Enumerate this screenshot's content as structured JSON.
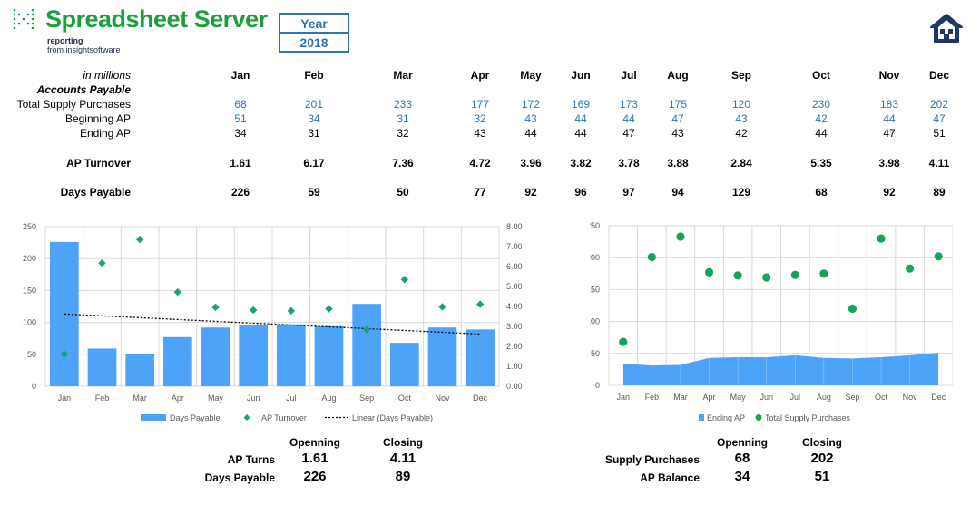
{
  "brand": {
    "name": "Spreadsheet Server",
    "tagline_line1": "reporting",
    "tagline_line2": "from insightsoftware",
    "accent_color": "#1e9f3e"
  },
  "year_selector": {
    "label": "Year",
    "value": "2018"
  },
  "home_icon": "home-icon",
  "table": {
    "units_label": "in millions",
    "section_label": "Accounts Payable",
    "months": [
      "Jan",
      "Feb",
      "Mar",
      "Apr",
      "May",
      "Jun",
      "Jul",
      "Aug",
      "Sep",
      "Oct",
      "Nov",
      "Dec"
    ],
    "rows": {
      "total_supply_purchases": {
        "label": "Total Supply Purchases",
        "values": [
          "68",
          "201",
          "233",
          "177",
          "172",
          "169",
          "173",
          "175",
          "120",
          "230",
          "183",
          "202"
        ]
      },
      "beginning_ap": {
        "label": "Beginning AP",
        "values": [
          "51",
          "34",
          "31",
          "32",
          "43",
          "44",
          "44",
          "47",
          "43",
          "42",
          "44",
          "47"
        ]
      },
      "ending_ap": {
        "label": "Ending AP",
        "values": [
          "34",
          "31",
          "32",
          "43",
          "44",
          "44",
          "47",
          "43",
          "42",
          "44",
          "47",
          "51"
        ]
      },
      "ap_turnover": {
        "label": "AP Turnover",
        "values": [
          "1.61",
          "6.17",
          "7.36",
          "4.72",
          "3.96",
          "3.82",
          "3.78",
          "3.88",
          "2.84",
          "5.35",
          "3.98",
          "4.11"
        ]
      },
      "days_payable": {
        "label": "Days Payable",
        "values": [
          "226",
          "59",
          "50",
          "77",
          "92",
          "96",
          "97",
          "94",
          "129",
          "68",
          "92",
          "89"
        ]
      }
    }
  },
  "chart_data": [
    {
      "type": "bar",
      "categories": [
        "Jan",
        "Feb",
        "Mar",
        "Apr",
        "May",
        "Jun",
        "Jul",
        "Aug",
        "Sep",
        "Oct",
        "Nov",
        "Dec"
      ],
      "series": [
        {
          "name": "Days Payable",
          "kind": "bar",
          "axis": "left",
          "values": [
            226,
            59,
            50,
            77,
            92,
            96,
            97,
            94,
            129,
            68,
            92,
            89
          ],
          "color": "#4da3f7"
        },
        {
          "name": "AP Turnover",
          "kind": "scatter",
          "axis": "right",
          "values": [
            1.61,
            6.17,
            7.36,
            4.72,
            3.96,
            3.82,
            3.78,
            3.88,
            2.84,
            5.35,
            3.98,
            4.11
          ],
          "color": "#17a377"
        },
        {
          "name": "Linear (Days Payable)",
          "kind": "trendline",
          "axis": "left",
          "color": "#000000"
        }
      ],
      "left_ticks": [
        "0",
        "50",
        "100",
        "150",
        "200",
        "250"
      ],
      "right_ticks": [
        "0.00",
        "1.00",
        "2.00",
        "3.00",
        "4.00",
        "5.00",
        "6.00",
        "7.00",
        "8.00"
      ],
      "ylim": [
        0,
        250
      ],
      "y2lim": [
        0,
        8
      ],
      "grid": true,
      "legend_position": "bottom"
    },
    {
      "type": "area",
      "categories": [
        "Jan",
        "Feb",
        "Mar",
        "Apr",
        "May",
        "Jun",
        "Jul",
        "Aug",
        "Sep",
        "Oct",
        "Nov",
        "Dec"
      ],
      "series": [
        {
          "name": "Ending AP",
          "kind": "area",
          "values": [
            34,
            31,
            32,
            43,
            44,
            44,
            47,
            43,
            42,
            44,
            47,
            51
          ],
          "color": "#4da3f7"
        },
        {
          "name": "Total Supply Purchases",
          "kind": "scatter",
          "values": [
            68,
            201,
            233,
            177,
            172,
            169,
            173,
            175,
            120,
            230,
            183,
            202
          ],
          "color": "#17a35a"
        }
      ],
      "left_ticks": [
        "0",
        "50",
        "100",
        "150",
        "200",
        "250"
      ],
      "ylim": [
        0,
        250
      ],
      "grid": true,
      "legend_position": "bottom"
    }
  ],
  "summary_left": {
    "col_opening": "Openning",
    "col_closing": "Closing",
    "rows": [
      {
        "label": "AP Turns",
        "opening": "1.61",
        "closing": "4.11"
      },
      {
        "label": "Days Payable",
        "opening": "226",
        "closing": "89"
      }
    ]
  },
  "summary_right": {
    "col_opening": "Openning",
    "col_closing": "Closing",
    "rows": [
      {
        "label": "Supply Purchases",
        "opening": "68",
        "closing": "202"
      },
      {
        "label": "AP Balance",
        "opening": "34",
        "closing": "51"
      }
    ]
  }
}
